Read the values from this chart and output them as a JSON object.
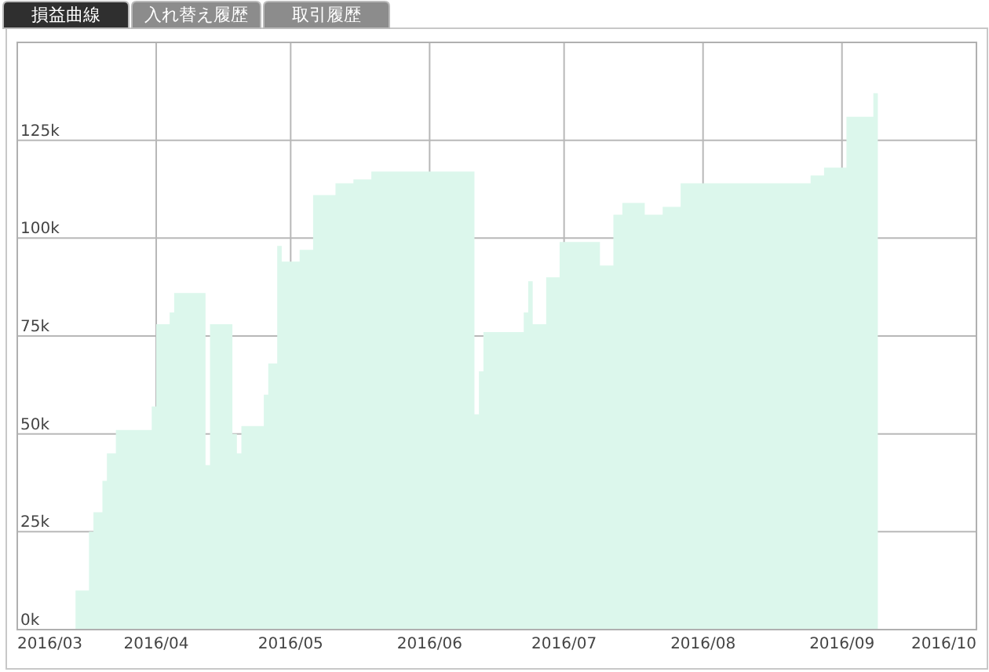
{
  "chart_data": {
    "type": "area",
    "annotations": [
      "損益曲線",
      "入れ替え履歴",
      "取引履歴"
    ],
    "xlim": [
      "2016-03-01",
      "2016-10-01"
    ],
    "xticks": [
      {
        "value": "2016-03-01",
        "label": "2016/03"
      },
      {
        "value": "2016-04-01",
        "label": "2016/04"
      },
      {
        "value": "2016-05-01",
        "label": "2016/05"
      },
      {
        "value": "2016-06-01",
        "label": "2016/06"
      },
      {
        "value": "2016-07-01",
        "label": "2016/07"
      },
      {
        "value": "2016-08-01",
        "label": "2016/08"
      },
      {
        "value": "2016-09-01",
        "label": "2016/09"
      },
      {
        "value": "2016-10-01",
        "label": "2016/10"
      }
    ],
    "ylim": [
      0,
      150000
    ],
    "yticks": [
      {
        "value": 0,
        "label": "0k"
      },
      {
        "value": 25000,
        "label": "25k"
      },
      {
        "value": 50000,
        "label": "50k"
      },
      {
        "value": 75000,
        "label": "75k"
      },
      {
        "value": 100000,
        "label": "100k"
      },
      {
        "value": 125000,
        "label": "125k"
      }
    ],
    "grid": true,
    "series": [
      {
        "color": "#dcf7ec",
        "x": [
          "2016-03-14",
          "2016-03-17",
          "2016-03-17",
          "2016-03-18",
          "2016-03-18",
          "2016-03-20",
          "2016-03-20",
          "2016-03-21",
          "2016-03-21",
          "2016-03-23",
          "2016-03-23",
          "2016-03-31",
          "2016-03-31",
          "2016-04-01",
          "2016-04-01",
          "2016-04-04",
          "2016-04-04",
          "2016-04-05",
          "2016-04-05",
          "2016-04-12",
          "2016-04-12",
          "2016-04-13",
          "2016-04-13",
          "2016-04-18",
          "2016-04-18",
          "2016-04-19",
          "2016-04-19",
          "2016-04-20",
          "2016-04-20",
          "2016-04-25",
          "2016-04-25",
          "2016-04-26",
          "2016-04-26",
          "2016-04-28",
          "2016-04-28",
          "2016-04-29",
          "2016-04-29",
          "2016-05-03",
          "2016-05-03",
          "2016-05-06",
          "2016-05-06",
          "2016-05-11",
          "2016-05-11",
          "2016-05-15",
          "2016-05-15",
          "2016-05-19",
          "2016-05-19",
          "2016-06-11",
          "2016-06-11",
          "2016-06-12",
          "2016-06-12",
          "2016-06-13",
          "2016-06-13",
          "2016-06-22",
          "2016-06-22",
          "2016-06-23",
          "2016-06-23",
          "2016-06-24",
          "2016-06-24",
          "2016-06-27",
          "2016-06-27",
          "2016-06-30",
          "2016-06-30",
          "2016-07-09",
          "2016-07-09",
          "2016-07-12",
          "2016-07-12",
          "2016-07-14",
          "2016-07-14",
          "2016-07-19",
          "2016-07-19",
          "2016-07-23",
          "2016-07-23",
          "2016-07-27",
          "2016-07-27",
          "2016-08-25",
          "2016-08-25",
          "2016-08-28",
          "2016-08-28",
          "2016-09-02",
          "2016-09-02",
          "2016-09-08",
          "2016-09-08",
          "2016-09-09"
        ],
        "values": [
          10000,
          10000,
          25000,
          25000,
          30000,
          30000,
          38000,
          38000,
          45000,
          45000,
          51000,
          51000,
          57000,
          57000,
          78000,
          78000,
          81000,
          81000,
          86000,
          86000,
          42000,
          42000,
          78000,
          78000,
          50000,
          50000,
          45000,
          45000,
          52000,
          52000,
          60000,
          60000,
          68000,
          68000,
          98000,
          98000,
          94000,
          94000,
          97000,
          97000,
          111000,
          111000,
          114000,
          114000,
          115000,
          115000,
          117000,
          117000,
          55000,
          55000,
          66000,
          66000,
          76000,
          76000,
          81000,
          81000,
          89000,
          89000,
          78000,
          78000,
          90000,
          90000,
          99000,
          99000,
          93000,
          93000,
          106000,
          106000,
          109000,
          109000,
          106000,
          106000,
          108000,
          108000,
          114000,
          114000,
          116000,
          116000,
          118000,
          118000,
          131000,
          131000,
          137000,
          137000
        ]
      }
    ]
  }
}
